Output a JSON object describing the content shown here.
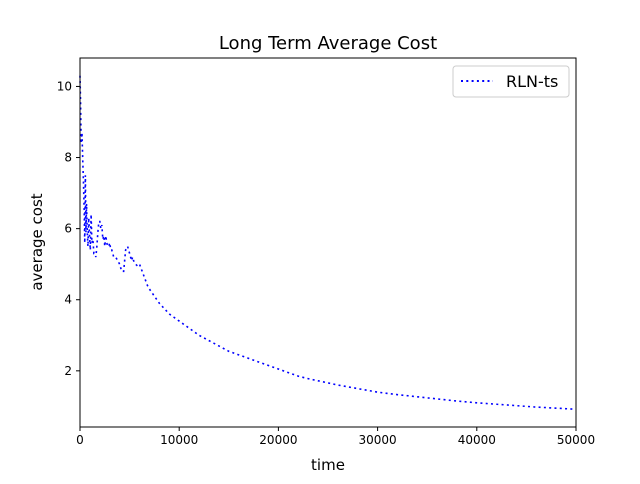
{
  "chart_data": {
    "type": "line",
    "title": "Long Term Average Cost",
    "xlabel": "time",
    "ylabel": "average cost",
    "xlim": [
      0,
      50000
    ],
    "ylim": [
      0.42,
      10.8
    ],
    "x_ticks": [
      0,
      10000,
      20000,
      30000,
      40000,
      50000
    ],
    "x_tick_labels": [
      "0",
      "10000",
      "20000",
      "30000",
      "40000",
      "50000"
    ],
    "y_ticks": [
      2,
      4,
      6,
      8,
      10
    ],
    "y_tick_labels": [
      "2",
      "4",
      "6",
      "8",
      "10"
    ],
    "grid": false,
    "legend_position": "top-right",
    "series": [
      {
        "name": "RLN-ts",
        "color": "#0000ff",
        "line_style": "dotted",
        "x": [
          0,
          60,
          120,
          200,
          280,
          350,
          420,
          480,
          540,
          600,
          660,
          720,
          800,
          880,
          960,
          1040,
          1120,
          1200,
          1300,
          1400,
          1500,
          1600,
          1700,
          1800,
          1900,
          2000,
          2100,
          2200,
          2300,
          2400,
          2500,
          2600,
          2700,
          2800,
          2900,
          3000,
          3100,
          3200,
          3400,
          3600,
          3800,
          4000,
          4200,
          4400,
          4600,
          4800,
          5000,
          5100,
          5200,
          5300,
          5400,
          5600,
          5800,
          6000,
          6200,
          6400,
          6600,
          6800,
          7000,
          7500,
          8000,
          8500,
          9000,
          9500,
          10000,
          11000,
          12000,
          13000,
          14000,
          15000,
          16000,
          17000,
          18000,
          19000,
          20000,
          21000,
          22000,
          23000,
          24000,
          25000,
          26000,
          27000,
          28000,
          29000,
          30000,
          32000,
          34000,
          36000,
          38000,
          40000,
          42000,
          44000,
          46000,
          48000,
          50000
        ],
        "y": [
          10.3,
          9.5,
          8.4,
          8.7,
          7.9,
          7.3,
          6.5,
          5.6,
          7.5,
          5.9,
          6.7,
          6.0,
          5.5,
          6.3,
          5.8,
          5.4,
          6.4,
          5.6,
          5.7,
          5.3,
          5.3,
          5.2,
          5.5,
          5.9,
          6.2,
          6.2,
          6.0,
          6.1,
          5.7,
          5.8,
          5.5,
          5.8,
          5.6,
          5.5,
          5.5,
          5.6,
          5.4,
          5.4,
          5.2,
          5.2,
          5.1,
          5.0,
          4.8,
          4.8,
          5.4,
          5.5,
          5.3,
          5.2,
          5.1,
          5.2,
          5.1,
          5.0,
          4.95,
          5.0,
          4.85,
          4.7,
          4.55,
          4.4,
          4.3,
          4.1,
          3.9,
          3.75,
          3.6,
          3.5,
          3.4,
          3.2,
          3.0,
          2.85,
          2.7,
          2.55,
          2.45,
          2.35,
          2.25,
          2.15,
          2.05,
          1.95,
          1.85,
          1.78,
          1.72,
          1.66,
          1.6,
          1.55,
          1.5,
          1.45,
          1.4,
          1.33,
          1.27,
          1.21,
          1.15,
          1.1,
          1.06,
          1.02,
          0.98,
          0.95,
          0.92
        ]
      }
    ]
  }
}
